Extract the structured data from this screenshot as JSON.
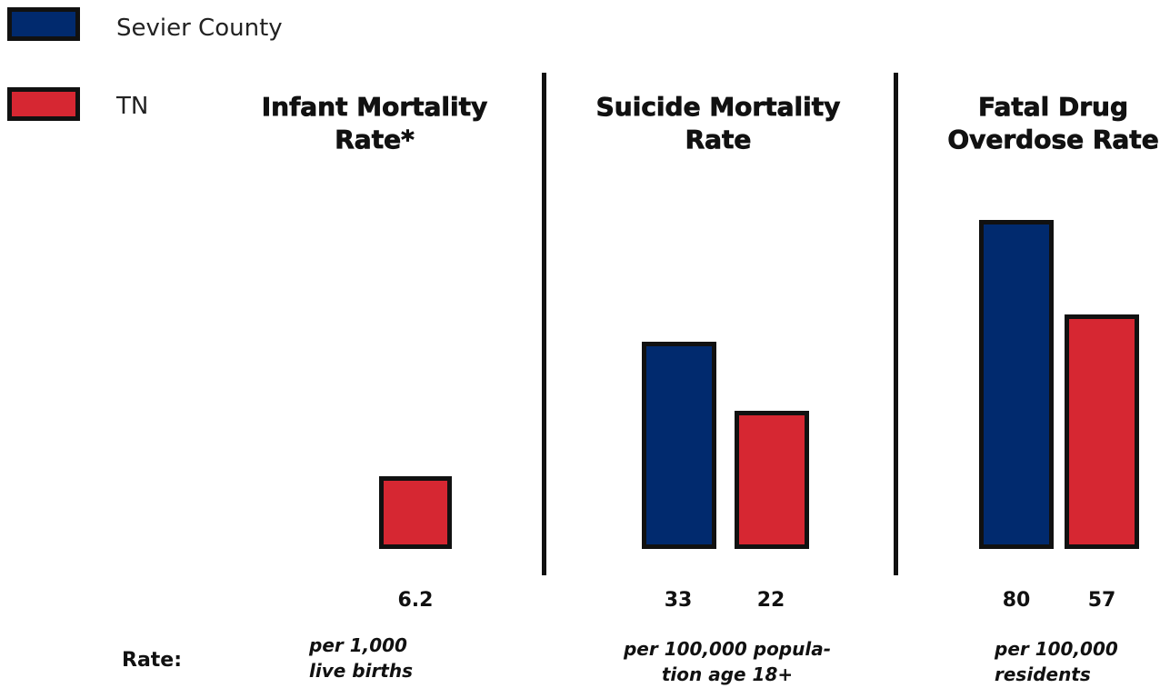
{
  "legend": [
    {
      "label": "Sevier County",
      "color": "#012a6e"
    },
    {
      "label": "TN",
      "color": "#d62732"
    }
  ],
  "rate_label": "Rate:",
  "chart_data": {
    "type": "bar",
    "series_names": [
      "Sevier County",
      "TN"
    ],
    "colors": {
      "Sevier County": "#012a6e",
      "TN": "#d62732"
    },
    "panels": [
      {
        "title": "Infant Mortality\nRate*",
        "unit": "per 1,000\nlive births",
        "values": [
          null,
          6.2
        ],
        "labels": [
          "",
          "6.2"
        ]
      },
      {
        "title": "Suicide Mortality\nRate",
        "unit": "per 100,000 popula-\ntion age 18+",
        "values": [
          33,
          22
        ],
        "labels": [
          "33",
          "22"
        ]
      },
      {
        "title": "Fatal Drug\nOverdose Rate",
        "unit": "per 100,000\nresidents",
        "values": [
          80,
          57
        ],
        "labels": [
          "80",
          "57"
        ]
      }
    ]
  }
}
